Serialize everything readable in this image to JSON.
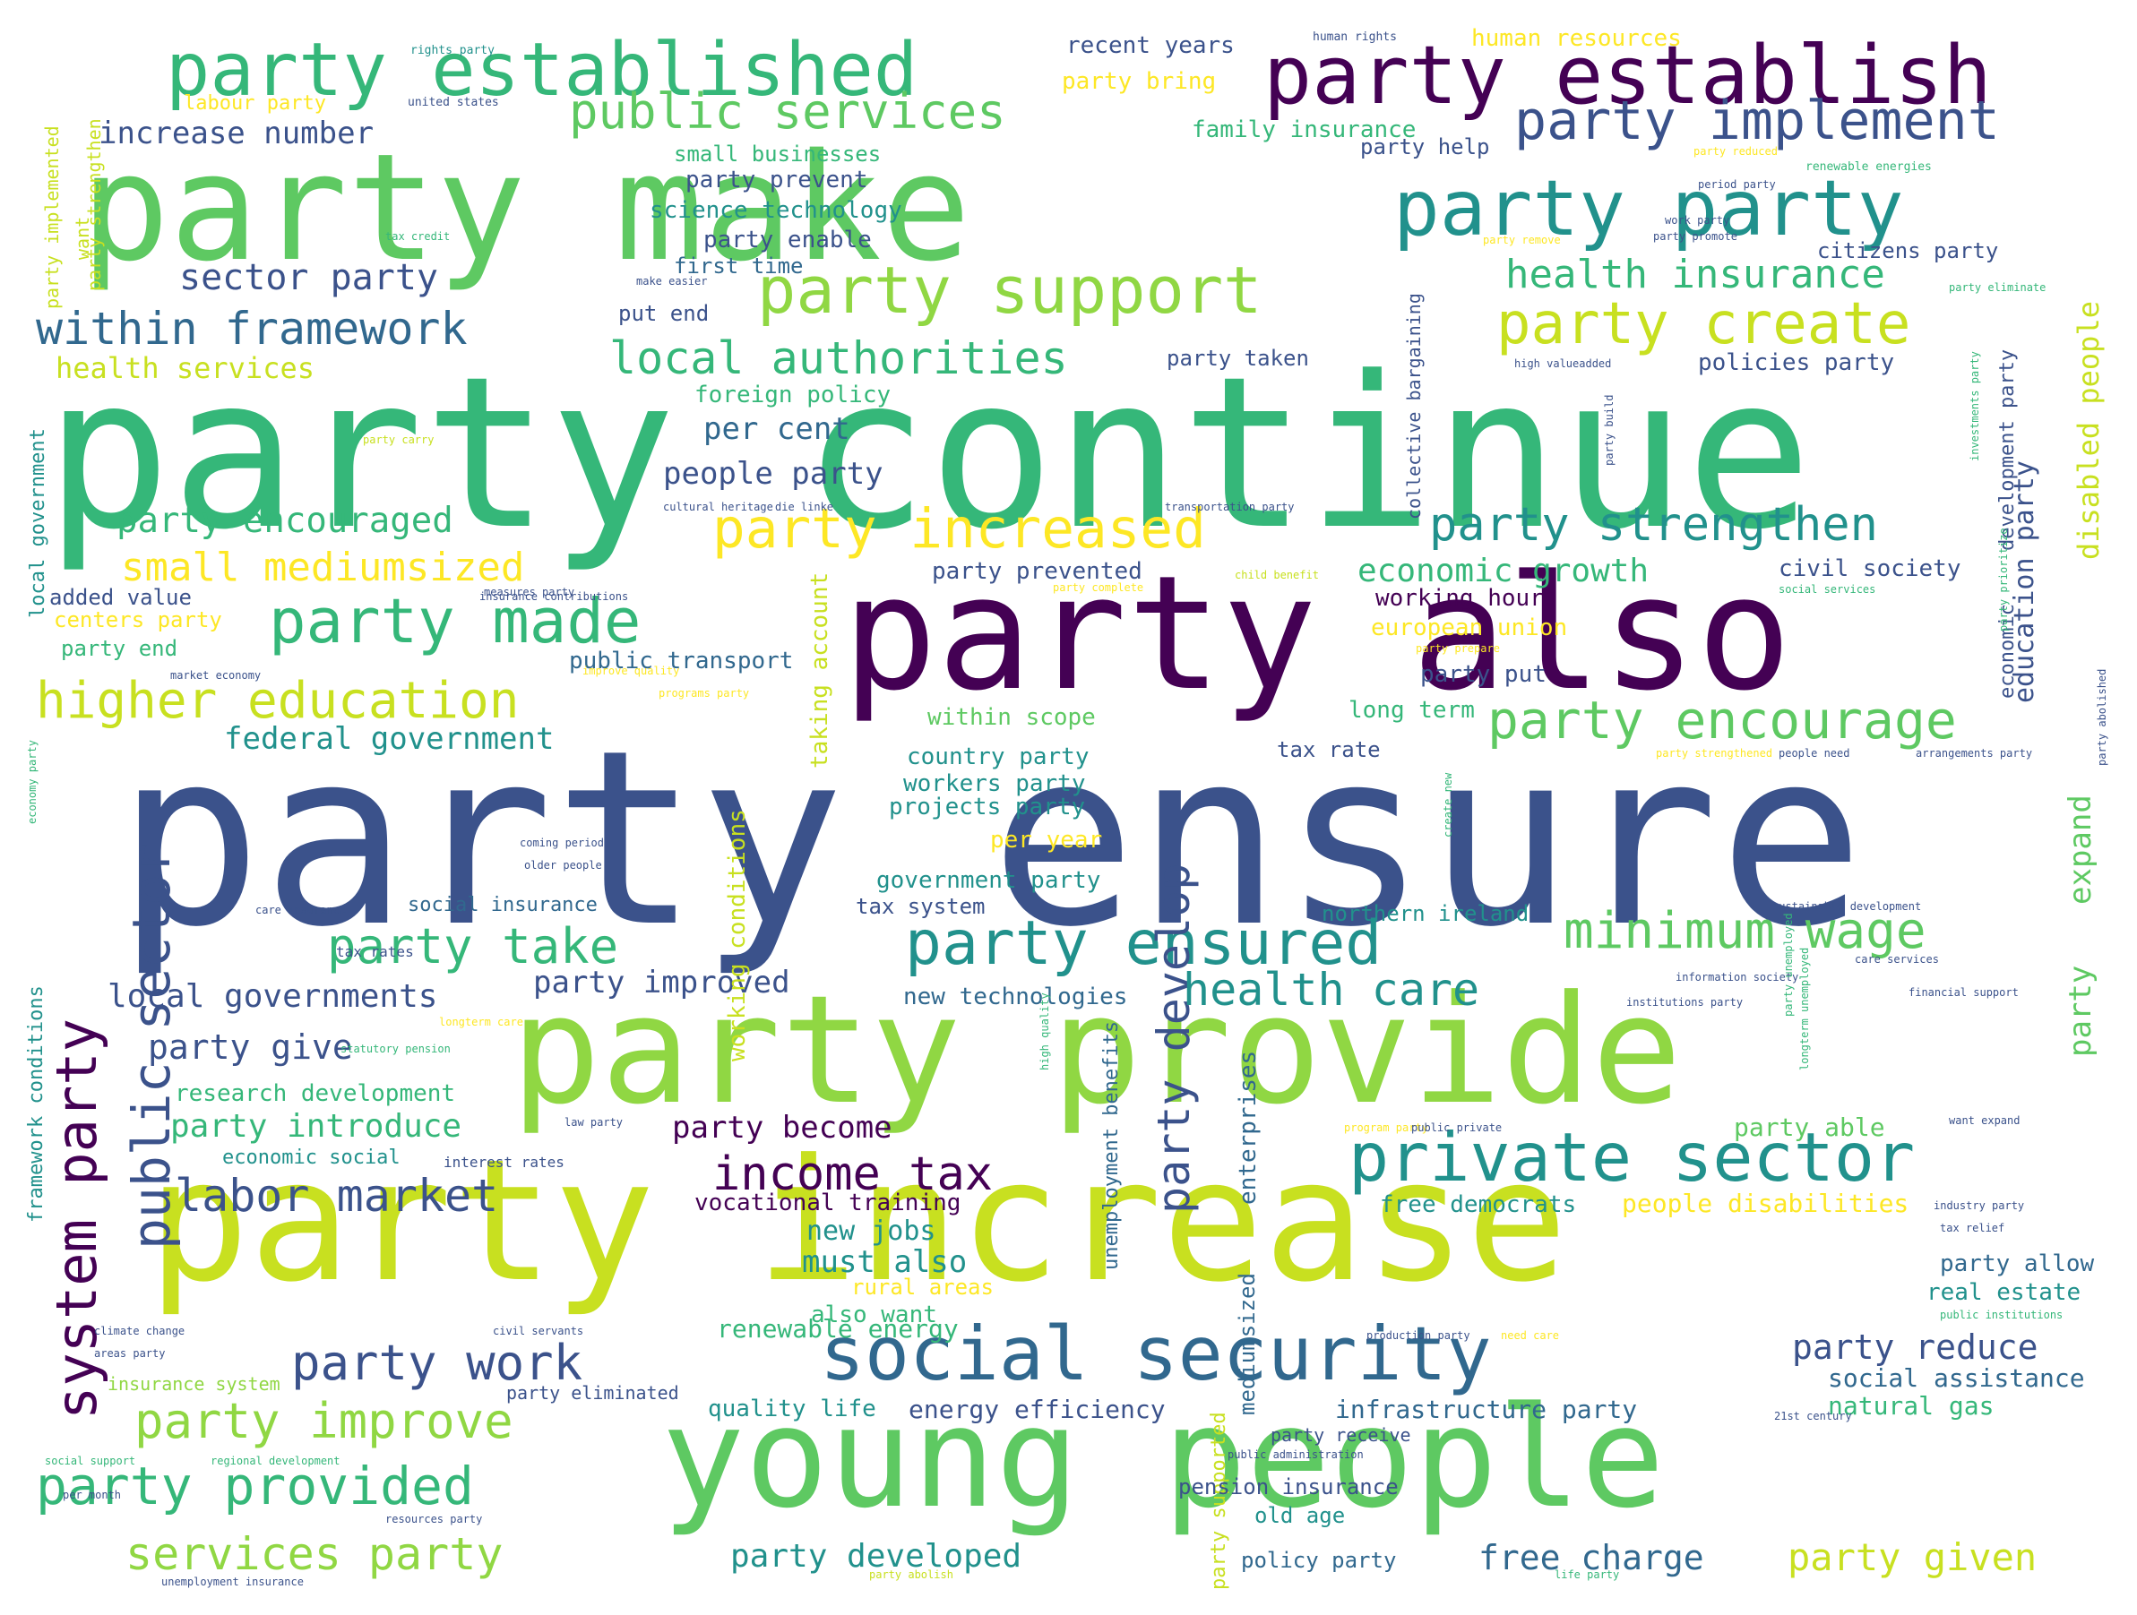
{
  "palette": {
    "dark_purple": "#440154",
    "indigo": "#3b528b",
    "slate_blue": "#31688e",
    "teal": "#21918c",
    "sea_green": "#35b779",
    "green": "#5ec962",
    "lime": "#90d743",
    "yellow_green": "#c8e020",
    "yellow": "#fde725"
  },
  "words": [
    {
      "text": "party ensure",
      "color": "#3b528b"
    },
    {
      "text": "party continue",
      "color": "#35b779"
    },
    {
      "text": "party increase",
      "color": "#c8e020"
    },
    {
      "text": "party also",
      "color": "#440154"
    },
    {
      "text": "party make",
      "color": "#5ec962"
    },
    {
      "text": "party provide",
      "color": "#90d743"
    },
    {
      "text": "young people",
      "color": "#5ec962"
    },
    {
      "text": "party established",
      "color": "#35b779"
    },
    {
      "text": "party establish",
      "color": "#440154"
    },
    {
      "text": "social security",
      "color": "#31688e"
    },
    {
      "text": "party party",
      "color": "#21918c"
    },
    {
      "text": "party support",
      "color": "#90d743"
    },
    {
      "text": "party increased",
      "color": "#fde725"
    },
    {
      "text": "party made",
      "color": "#35b779"
    },
    {
      "text": "private sector",
      "color": "#21918c"
    },
    {
      "text": "party ensured",
      "color": "#21918c"
    },
    {
      "text": "public sector",
      "color": "#3b528b"
    },
    {
      "text": "party implement",
      "color": "#3b528b"
    },
    {
      "text": "system party",
      "color": "#440154"
    },
    {
      "text": "party create",
      "color": "#c8e020"
    },
    {
      "text": "party encourage",
      "color": "#5ec962"
    },
    {
      "text": "party provided",
      "color": "#35b779"
    },
    {
      "text": "public services",
      "color": "#5ec962"
    },
    {
      "text": "party strengthen",
      "color": "#21918c"
    },
    {
      "text": "higher education",
      "color": "#c8e020"
    },
    {
      "text": "local authorities",
      "color": "#35b779"
    },
    {
      "text": "party work",
      "color": "#3b528b"
    },
    {
      "text": "party develop",
      "color": "#3b528b"
    },
    {
      "text": "minimum wage",
      "color": "#5ec962"
    },
    {
      "text": "party take",
      "color": "#35b779"
    },
    {
      "text": "within framework",
      "color": "#31688e"
    },
    {
      "text": "health care",
      "color": "#21918c"
    },
    {
      "text": "income tax",
      "color": "#440154"
    },
    {
      "text": "party improve",
      "color": "#90d743"
    },
    {
      "text": "services party",
      "color": "#90d743"
    },
    {
      "text": "labor market",
      "color": "#3b528b"
    },
    {
      "text": "party given",
      "color": "#c8e020"
    },
    {
      "text": "party encouraged",
      "color": "#35b779"
    },
    {
      "text": "small mediumsized",
      "color": "#fde725"
    },
    {
      "text": "party developed",
      "color": "#21918c"
    },
    {
      "text": "health insurance",
      "color": "#35b779"
    },
    {
      "text": "party reduce",
      "color": "#3b528b"
    },
    {
      "text": "free charge",
      "color": "#31688e"
    },
    {
      "text": "local governments",
      "color": "#3b528b"
    },
    {
      "text": "party improved",
      "color": "#3b528b"
    },
    {
      "text": "sector party",
      "color": "#3b528b"
    },
    {
      "text": "party give",
      "color": "#3b528b"
    },
    {
      "text": "economic growth",
      "color": "#35b779"
    },
    {
      "text": "federal government",
      "color": "#21918c"
    },
    {
      "text": "party introduce",
      "color": "#35b779"
    },
    {
      "text": "party become",
      "color": "#440154"
    },
    {
      "text": "increase number",
      "color": "#3b528b"
    },
    {
      "text": "disabled people",
      "color": "#c8e020"
    },
    {
      "text": "education party",
      "color": "#3b528b"
    },
    {
      "text": "expand",
      "color": "#5ec962"
    },
    {
      "text": "party",
      "color": "#5ec962"
    },
    {
      "text": "people party",
      "color": "#3b528b"
    },
    {
      "text": "per cent",
      "color": "#31688e"
    },
    {
      "text": "health services",
      "color": "#c8e020"
    },
    {
      "text": "must also",
      "color": "#21918c"
    },
    {
      "text": "research development",
      "color": "#35b779"
    },
    {
      "text": "social insurance",
      "color": "#31688e"
    },
    {
      "text": "economic social",
      "color": "#21918c"
    },
    {
      "text": "new technologies",
      "color": "#31688e"
    },
    {
      "text": "unemployment benefits",
      "color": "#31688e"
    },
    {
      "text": "enterprises",
      "color": "#31688e"
    },
    {
      "text": "mediumsized",
      "color": "#31688e"
    },
    {
      "text": "party supported",
      "color": "#c8e020"
    },
    {
      "text": "real estate",
      "color": "#21918c"
    },
    {
      "text": "social assistance",
      "color": "#31688e"
    },
    {
      "text": "natural gas",
      "color": "#35b779"
    },
    {
      "text": "infrastructure party",
      "color": "#31688e"
    },
    {
      "text": "energy efficiency",
      "color": "#3b528b"
    },
    {
      "text": "quality life",
      "color": "#21918c"
    },
    {
      "text": "renewable energy",
      "color": "#35b779"
    },
    {
      "text": "pension insurance",
      "color": "#3b528b"
    },
    {
      "text": "old age",
      "color": "#21918c"
    },
    {
      "text": "policy party",
      "color": "#31688e"
    },
    {
      "text": "party receive",
      "color": "#3b528b"
    },
    {
      "text": "party allow",
      "color": "#31688e"
    },
    {
      "text": "party able",
      "color": "#5ec962"
    },
    {
      "text": "free democrats",
      "color": "#21918c"
    },
    {
      "text": "people disabilities",
      "color": "#fde725"
    },
    {
      "text": "vocational training",
      "color": "#440154"
    },
    {
      "text": "new jobs",
      "color": "#21918c"
    },
    {
      "text": "rural areas",
      "color": "#fde725"
    },
    {
      "text": "also want",
      "color": "#35b779"
    },
    {
      "text": "party eliminated",
      "color": "#3b528b"
    },
    {
      "text": "insurance system",
      "color": "#90d743"
    },
    {
      "text": "northern ireland",
      "color": "#21918c"
    },
    {
      "text": "tax system",
      "color": "#3b528b"
    },
    {
      "text": "government party",
      "color": "#21918c"
    },
    {
      "text": "per year",
      "color": "#fde725"
    },
    {
      "text": "projects party",
      "color": "#21918c"
    },
    {
      "text": "workers party",
      "color": "#21918c"
    },
    {
      "text": "country party",
      "color": "#21918c"
    },
    {
      "text": "within scope",
      "color": "#5ec962"
    },
    {
      "text": "working conditions",
      "color": "#c8e020"
    },
    {
      "text": "taking account",
      "color": "#c8e020"
    },
    {
      "text": "tax rate",
      "color": "#3b528b"
    },
    {
      "text": "long term",
      "color": "#35b779"
    },
    {
      "text": "party put",
      "color": "#3b528b"
    },
    {
      "text": "european union",
      "color": "#fde725"
    },
    {
      "text": "working hours",
      "color": "#440154"
    },
    {
      "text": "civil society",
      "color": "#3b528b"
    },
    {
      "text": "party prevented",
      "color": "#3b528b"
    },
    {
      "text": "public transport",
      "color": "#31688e"
    },
    {
      "text": "party end",
      "color": "#35b779"
    },
    {
      "text": "centers party",
      "color": "#fde725"
    },
    {
      "text": "added value",
      "color": "#3b528b"
    },
    {
      "text": "collective bargaining",
      "color": "#3b528b"
    },
    {
      "text": "policies party",
      "color": "#3b528b"
    },
    {
      "text": "party taken",
      "color": "#3b528b"
    },
    {
      "text": "foreign policy",
      "color": "#35b779"
    },
    {
      "text": "put end",
      "color": "#3b528b"
    },
    {
      "text": "first time",
      "color": "#31688e"
    },
    {
      "text": "party enable",
      "color": "#3b528b"
    },
    {
      "text": "science technology",
      "color": "#21918c"
    },
    {
      "text": "party prevent",
      "color": "#3b528b"
    },
    {
      "text": "small businesses",
      "color": "#35b779"
    },
    {
      "text": "family insurance",
      "color": "#35b779"
    },
    {
      "text": "party help",
      "color": "#3b528b"
    },
    {
      "text": "citizens party",
      "color": "#3b528b"
    },
    {
      "text": "party bring",
      "color": "#fde725"
    },
    {
      "text": "recent years",
      "color": "#3b528b"
    },
    {
      "text": "human resources",
      "color": "#fde725"
    },
    {
      "text": "labour party",
      "color": "#fde725"
    },
    {
      "text": "party strengthen",
      "color": "#c8e020"
    },
    {
      "text": "party implemented",
      "color": "#c8e020"
    },
    {
      "text": "want",
      "color": "#c8e020"
    },
    {
      "text": "local government",
      "color": "#21918c"
    },
    {
      "text": "framework conditions",
      "color": "#21918c"
    },
    {
      "text": "development party",
      "color": "#3b528b"
    },
    {
      "text": "economic",
      "color": "#3b528b"
    },
    {
      "text": "interest rates",
      "color": "#3b528b"
    },
    {
      "text": "tax rates",
      "color": "#3b528b"
    },
    {
      "text": "human rights",
      "color": "#3b528b"
    },
    {
      "text": "rights party",
      "color": "#21918c"
    },
    {
      "text": "united states",
      "color": "#3b528b"
    },
    {
      "text": "party reduced",
      "color": "#fde725"
    },
    {
      "text": "renewable energies",
      "color": "#35b779"
    },
    {
      "text": "period party",
      "color": "#3b528b"
    },
    {
      "text": "work party",
      "color": "#3b528b"
    },
    {
      "text": "party promote",
      "color": "#3b528b"
    },
    {
      "text": "party remove",
      "color": "#fde725"
    },
    {
      "text": "tax credit",
      "color": "#35b779"
    },
    {
      "text": "make easier",
      "color": "#3b528b"
    },
    {
      "text": "party eliminate",
      "color": "#35b779"
    },
    {
      "text": "high valueadded",
      "color": "#3b528b"
    },
    {
      "text": "party carry",
      "color": "#c8e020"
    },
    {
      "text": "party build",
      "color": "#3b528b"
    },
    {
      "text": "investments party",
      "color": "#35b779"
    },
    {
      "text": "transportation party",
      "color": "#3b528b"
    },
    {
      "text": "cultural heritage",
      "color": "#3b528b"
    },
    {
      "text": "die linke",
      "color": "#3b528b"
    },
    {
      "text": "measures party",
      "color": "#3b528b"
    },
    {
      "text": "insurance contributions",
      "color": "#3b528b"
    },
    {
      "text": "child benefit",
      "color": "#c8e020"
    },
    {
      "text": "party complete",
      "color": "#fde725"
    },
    {
      "text": "social services",
      "color": "#35b779"
    },
    {
      "text": "party prioritize",
      "color": "#35b779"
    },
    {
      "text": "market economy",
      "color": "#3b528b"
    },
    {
      "text": "improve quality",
      "color": "#fde725"
    },
    {
      "text": "party prepare",
      "color": "#fde725"
    },
    {
      "text": "programs party",
      "color": "#fde725"
    },
    {
      "text": "people need",
      "color": "#3b528b"
    },
    {
      "text": "party strengthened",
      "color": "#fde725"
    },
    {
      "text": "arrangements party",
      "color": "#3b528b"
    },
    {
      "text": "party abolished",
      "color": "#3b528b"
    },
    {
      "text": "economy party",
      "color": "#35b779"
    },
    {
      "text": "coming period",
      "color": "#3b528b"
    },
    {
      "text": "older people",
      "color": "#3b528b"
    },
    {
      "text": "create new",
      "color": "#35b779"
    },
    {
      "text": "care insurance",
      "color": "#3b528b"
    },
    {
      "text": "sustainable development",
      "color": "#3b528b"
    },
    {
      "text": "care services",
      "color": "#3b528b"
    },
    {
      "text": "information society",
      "color": "#3b528b"
    },
    {
      "text": "institutions party",
      "color": "#3b528b"
    },
    {
      "text": "party unemployed",
      "color": "#35b779"
    },
    {
      "text": "financial support",
      "color": "#3b528b"
    },
    {
      "text": "longterm care",
      "color": "#fde725"
    },
    {
      "text": "statutory pension",
      "color": "#35b779"
    },
    {
      "text": "high quality",
      "color": "#35b779"
    },
    {
      "text": "longterm unemployed",
      "color": "#35b779"
    },
    {
      "text": "want expand",
      "color": "#3b528b"
    },
    {
      "text": "law party",
      "color": "#3b528b"
    },
    {
      "text": "program party",
      "color": "#fde725"
    },
    {
      "text": "public private",
      "color": "#3b528b"
    },
    {
      "text": "industry party",
      "color": "#3b528b"
    },
    {
      "text": "tax relief",
      "color": "#3b528b"
    },
    {
      "text": "climate change",
      "color": "#3b528b"
    },
    {
      "text": "civil servants",
      "color": "#3b528b"
    },
    {
      "text": "production party",
      "color": "#3b528b"
    },
    {
      "text": "need care",
      "color": "#fde725"
    },
    {
      "text": "public institutions",
      "color": "#35b779"
    },
    {
      "text": "areas party",
      "color": "#3b528b"
    },
    {
      "text": "social support",
      "color": "#35b779"
    },
    {
      "text": "regional development",
      "color": "#35b779"
    },
    {
      "text": "public administration",
      "color": "#3b528b"
    },
    {
      "text": "21st century",
      "color": "#3b528b"
    },
    {
      "text": "per month",
      "color": "#3b528b"
    },
    {
      "text": "resources party",
      "color": "#3b528b"
    },
    {
      "text": "unemployment insurance",
      "color": "#3b528b"
    },
    {
      "text": "party abolish",
      "color": "#c8e020"
    },
    {
      "text": "life party",
      "color": "#35b779"
    }
  ]
}
